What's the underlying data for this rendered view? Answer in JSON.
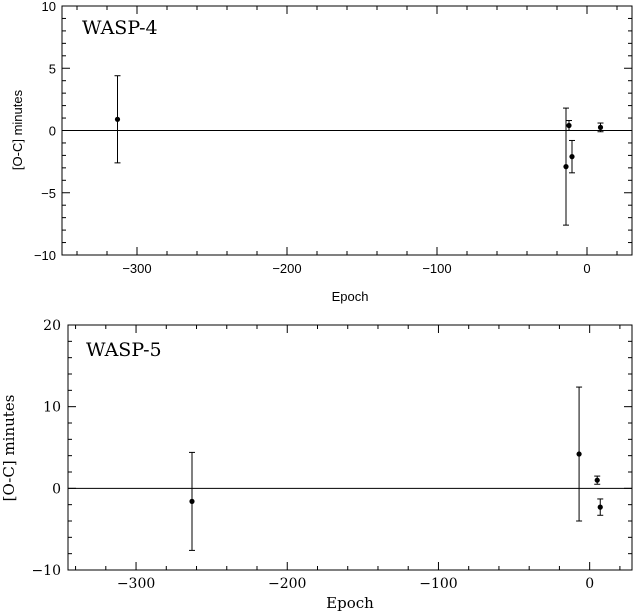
{
  "chart_data": [
    {
      "type": "scatter",
      "title": "WASP-4",
      "xlabel": "Epoch",
      "ylabel": "[O-C] minutes",
      "xlim": [
        -350,
        30
      ],
      "ylim": [
        -10,
        10
      ],
      "xticks": [
        -300,
        -200,
        -100,
        0
      ],
      "yticks": [
        -10,
        -5,
        0,
        5,
        10
      ],
      "reference_line_y": 0,
      "grid": false,
      "points": [
        {
          "x": -313,
          "y": 0.9,
          "err": 3.5
        },
        {
          "x": -14,
          "y": -2.9,
          "err": 4.7
        },
        {
          "x": -12,
          "y": 0.4,
          "err": 0.4
        },
        {
          "x": -10,
          "y": -2.1,
          "err": 1.3
        },
        {
          "x": 9,
          "y": 0.25,
          "err": 0.35
        }
      ]
    },
    {
      "type": "scatter",
      "title": "WASP-5",
      "xlabel": "Epoch",
      "ylabel": "[O-C] minutes",
      "xlim": [
        -345,
        28
      ],
      "ylim": [
        -10,
        20
      ],
      "xticks": [
        -300,
        -200,
        -100,
        0
      ],
      "yticks": [
        -10,
        0,
        10,
        20
      ],
      "reference_line_y": 0,
      "grid": false,
      "points": [
        {
          "x": -263,
          "y": -1.6,
          "err": 6.0
        },
        {
          "x": -7,
          "y": 4.2,
          "err": 8.2
        },
        {
          "x": 5,
          "y": 1.0,
          "err": 0.5
        },
        {
          "x": 7,
          "y": -2.3,
          "err": 1.0
        }
      ]
    }
  ]
}
